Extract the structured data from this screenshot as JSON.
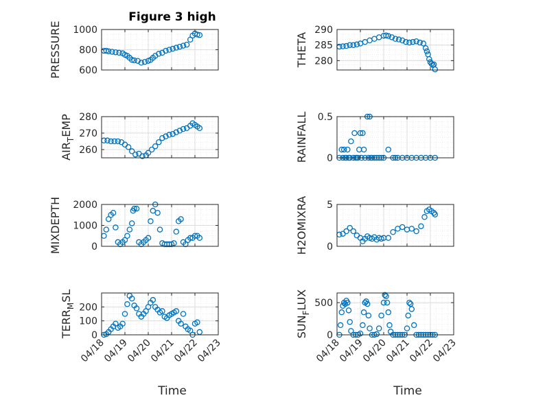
{
  "figure": {
    "title": "Figure 3 high",
    "xlabel": "Time",
    "x_ticks": [
      "04/18",
      "04/19",
      "04/20",
      "04/21",
      "04/22",
      "04/23"
    ]
  },
  "style": {
    "marker_color": "#0072BD",
    "axis_color": "#262626",
    "grid_color": "#dcdcdc"
  },
  "chart_data": [
    {
      "type": "scatter",
      "panel": "pressure",
      "ylabel": "PRESSURE",
      "ylim": [
        600,
        1000
      ],
      "yticks": [
        600,
        800,
        1000
      ],
      "xlim": [
        0,
        5
      ],
      "title": "Figure 3 high",
      "xticklabels": false,
      "x": [
        0.1,
        0.2,
        0.3,
        0.45,
        0.6,
        0.75,
        0.9,
        1.0,
        1.1,
        1.2,
        1.3,
        1.4,
        1.55,
        1.7,
        1.85,
        2.0,
        2.1,
        2.2,
        2.3,
        2.45,
        2.6,
        2.75,
        2.9,
        3.05,
        3.2,
        3.35,
        3.5,
        3.65,
        3.8,
        3.9,
        4.0,
        4.1,
        4.2
      ],
      "y": [
        790,
        790,
        785,
        780,
        775,
        770,
        765,
        750,
        740,
        720,
        700,
        695,
        690,
        672,
        680,
        690,
        700,
        720,
        740,
        760,
        770,
        790,
        800,
        810,
        820,
        830,
        840,
        850,
        900,
        940,
        960,
        950,
        945
      ]
    },
    {
      "type": "scatter",
      "panel": "theta",
      "ylabel": "THETA",
      "ylim": [
        277,
        290
      ],
      "yticks": [
        280,
        285,
        290
      ],
      "xlim": [
        0,
        5
      ],
      "xticklabels": false,
      "x": [
        0.1,
        0.25,
        0.4,
        0.55,
        0.7,
        0.85,
        1.0,
        1.2,
        1.4,
        1.6,
        1.8,
        2.0,
        2.1,
        2.2,
        2.35,
        2.5,
        2.65,
        2.8,
        2.95,
        3.1,
        3.25,
        3.4,
        3.55,
        3.7,
        3.8,
        3.85,
        3.9,
        3.95,
        4.0,
        4.05,
        4.1,
        4.15,
        4.2
      ],
      "y": [
        284.5,
        284.6,
        284.7,
        285,
        285,
        285.2,
        285.5,
        286,
        286.5,
        287,
        287.5,
        288,
        288.1,
        287.9,
        287.5,
        287,
        286.8,
        286.5,
        286,
        285.8,
        286,
        286.2,
        285.8,
        285.5,
        284,
        283,
        282,
        280.5,
        279.5,
        279,
        278.6,
        278.8,
        277.2
      ]
    },
    {
      "type": "scatter",
      "panel": "air_temp",
      "ylabel": "AIR",
      "ylabel_sub": "T",
      "ylabel_suffix": "EMP",
      "ylim": [
        255,
        280
      ],
      "yticks": [
        260,
        270,
        280
      ],
      "xlim": [
        0,
        5
      ],
      "xticklabels": false,
      "x": [
        0.1,
        0.25,
        0.4,
        0.55,
        0.7,
        0.85,
        1.0,
        1.15,
        1.3,
        1.45,
        1.6,
        1.75,
        1.9,
        2.0,
        2.15,
        2.3,
        2.45,
        2.6,
        2.75,
        2.9,
        3.05,
        3.2,
        3.35,
        3.5,
        3.65,
        3.8,
        3.9,
        4.0,
        4.1,
        4.2
      ],
      "y": [
        265.5,
        265.5,
        265,
        265,
        265,
        264.5,
        263,
        261.5,
        259,
        257,
        257.5,
        256,
        256.5,
        258,
        260,
        262,
        264.5,
        267,
        268,
        269,
        269.5,
        270.5,
        271.5,
        272.5,
        273,
        274.5,
        276,
        275,
        274,
        273
      ]
    },
    {
      "type": "scatter",
      "panel": "rainfall",
      "ylabel": "RAINFALL",
      "ylim": [
        0,
        0.5
      ],
      "yticks": [
        0,
        0.5
      ],
      "xlim": [
        0,
        5
      ],
      "xticklabels": false,
      "x": [
        0.1,
        0.2,
        0.25,
        0.3,
        0.35,
        0.4,
        0.45,
        0.5,
        0.55,
        0.6,
        0.7,
        0.75,
        0.8,
        0.85,
        0.9,
        0.95,
        1.0,
        1.05,
        1.1,
        1.15,
        1.2,
        1.3,
        1.35,
        1.4,
        1.45,
        1.5,
        1.6,
        1.7,
        1.8,
        1.9,
        2.0,
        2.2,
        2.4,
        2.5,
        2.6,
        2.8,
        3.0,
        3.2,
        3.4,
        3.6,
        3.8,
        4.0,
        4.2
      ],
      "y": [
        0,
        0.1,
        0,
        0.1,
        0,
        0,
        0.1,
        0,
        0,
        0.2,
        0,
        0.3,
        0,
        0,
        0,
        0.1,
        0.3,
        0,
        0.3,
        0.1,
        0,
        0.5,
        0,
        0.5,
        0,
        0,
        0,
        0,
        0,
        0,
        0,
        0.1,
        0,
        0,
        0,
        0,
        0,
        0,
        0,
        0,
        0,
        0,
        0
      ]
    },
    {
      "type": "scatter",
      "panel": "mixdepth",
      "ylabel": "MIXDEPTH",
      "ylim": [
        0,
        2000
      ],
      "yticks": [
        0,
        1000,
        2000
      ],
      "xlim": [
        0,
        5
      ],
      "xticklabels": false,
      "x": [
        0.1,
        0.2,
        0.3,
        0.4,
        0.5,
        0.6,
        0.7,
        0.8,
        0.9,
        1.0,
        1.1,
        1.2,
        1.3,
        1.35,
        1.4,
        1.5,
        1.6,
        1.7,
        1.8,
        1.9,
        2.0,
        2.1,
        2.2,
        2.3,
        2.4,
        2.5,
        2.6,
        2.7,
        2.8,
        2.9,
        3.0,
        3.1,
        3.2,
        3.3,
        3.4,
        3.5,
        3.6,
        3.7,
        3.8,
        3.9,
        4.0,
        4.1,
        4.2
      ],
      "y": [
        500,
        800,
        1300,
        1500,
        1600,
        900,
        200,
        100,
        200,
        300,
        500,
        800,
        1100,
        1700,
        1800,
        1800,
        200,
        100,
        200,
        300,
        400,
        1200,
        1700,
        2000,
        1600,
        800,
        150,
        100,
        100,
        100,
        100,
        150,
        700,
        1200,
        1300,
        200,
        100,
        300,
        400,
        400,
        500,
        500,
        400
      ]
    },
    {
      "type": "scatter",
      "panel": "h2omixra",
      "ylabel": "H2OMIXRA",
      "ylim": [
        0,
        5
      ],
      "yticks": [
        0,
        5
      ],
      "xlim": [
        0,
        5
      ],
      "xticklabels": false,
      "x": [
        0.1,
        0.25,
        0.4,
        0.55,
        0.7,
        0.85,
        1.0,
        1.1,
        1.2,
        1.3,
        1.4,
        1.5,
        1.6,
        1.7,
        1.8,
        1.9,
        2.0,
        2.2,
        2.4,
        2.6,
        2.8,
        3.0,
        3.2,
        3.4,
        3.6,
        3.75,
        3.85,
        3.95,
        4.05,
        4.15,
        4.2
      ],
      "y": [
        1.4,
        1.5,
        1.8,
        2.2,
        1.8,
        1.3,
        1.0,
        0.6,
        0.9,
        1.2,
        1.0,
        0.9,
        1.1,
        0.8,
        1.0,
        0.9,
        1.0,
        1.0,
        1.7,
        2.1,
        2.3,
        2.0,
        2.1,
        1.8,
        2.4,
        3.5,
        4.2,
        4.4,
        4.2,
        4.0,
        3.8
      ]
    },
    {
      "type": "scatter",
      "panel": "terr_msl",
      "ylabel": "TERR",
      "ylabel_sub": "M",
      "ylabel_suffix": "SL",
      "ylim": [
        0,
        300
      ],
      "yticks": [
        0,
        100,
        200
      ],
      "xlim": [
        0,
        5
      ],
      "xticklabels": true,
      "x": [
        0.1,
        0.2,
        0.3,
        0.4,
        0.5,
        0.6,
        0.7,
        0.8,
        0.9,
        1.0,
        1.1,
        1.2,
        1.3,
        1.4,
        1.5,
        1.6,
        1.7,
        1.8,
        1.9,
        2.0,
        2.1,
        2.2,
        2.3,
        2.4,
        2.5,
        2.6,
        2.7,
        2.8,
        2.9,
        3.0,
        3.1,
        3.2,
        3.3,
        3.4,
        3.5,
        3.6,
        3.7,
        3.8,
        3.9,
        4.0,
        4.1,
        4.2
      ],
      "y": [
        0,
        5,
        20,
        40,
        60,
        80,
        50,
        60,
        80,
        150,
        220,
        280,
        260,
        210,
        190,
        150,
        130,
        150,
        170,
        200,
        230,
        250,
        200,
        180,
        160,
        170,
        130,
        120,
        140,
        150,
        160,
        170,
        100,
        80,
        150,
        60,
        40,
        30,
        0,
        80,
        90,
        20
      ]
    },
    {
      "type": "scatter",
      "panel": "sun_flux",
      "ylabel": "SUN",
      "ylabel_sub": "F",
      "ylabel_suffix": "LUX",
      "ylim": [
        0,
        650
      ],
      "yticks": [
        0,
        500
      ],
      "xlim": [
        0,
        5
      ],
      "xticklabels": true,
      "x": [
        0.1,
        0.15,
        0.2,
        0.25,
        0.3,
        0.35,
        0.4,
        0.45,
        0.5,
        0.55,
        0.6,
        0.7,
        0.8,
        0.9,
        1.0,
        1.1,
        1.15,
        1.2,
        1.25,
        1.3,
        1.35,
        1.4,
        1.5,
        1.6,
        1.7,
        1.8,
        1.9,
        2.0,
        2.05,
        2.1,
        2.15,
        2.2,
        2.25,
        2.3,
        2.4,
        2.5,
        2.6,
        2.7,
        2.8,
        2.9,
        3.0,
        3.05,
        3.1,
        3.15,
        3.2,
        3.3,
        3.4,
        3.5,
        3.6,
        3.7,
        3.8,
        3.9,
        4.0,
        4.1,
        4.2
      ],
      "y": [
        0,
        150,
        350,
        450,
        500,
        480,
        530,
        500,
        380,
        200,
        60,
        0,
        0,
        0,
        20,
        150,
        350,
        500,
        520,
        480,
        300,
        100,
        0,
        0,
        10,
        100,
        300,
        500,
        620,
        600,
        500,
        350,
        150,
        50,
        0,
        0,
        0,
        0,
        0,
        0,
        100,
        300,
        500,
        480,
        400,
        150,
        0,
        0,
        0,
        0,
        0,
        0,
        0,
        0,
        0
      ]
    }
  ]
}
